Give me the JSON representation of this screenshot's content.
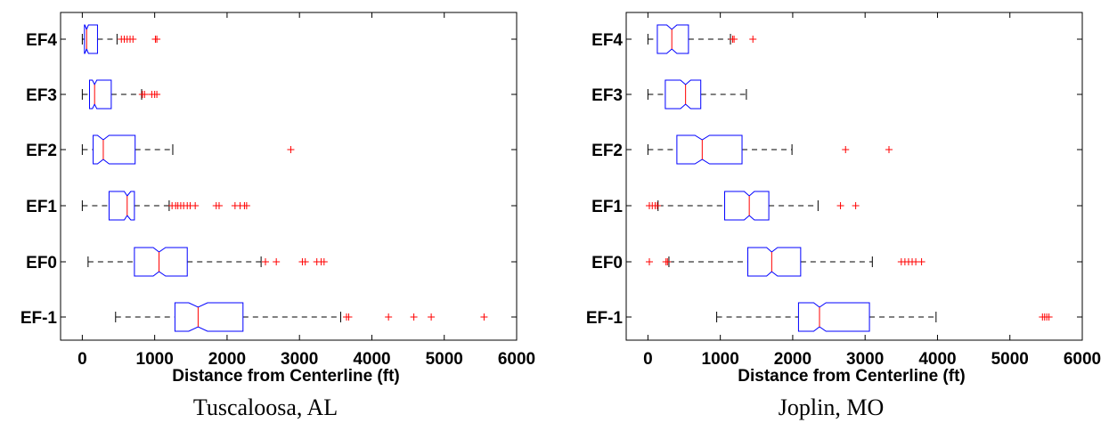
{
  "chart_data": [
    {
      "type": "boxplot",
      "orientation": "horizontal",
      "notched": true,
      "caption": "Tuscaloosa, AL",
      "xlabel": "Distance from Centerline (ft)",
      "xlim": [
        -300,
        6000
      ],
      "xticks": [
        0,
        1000,
        2000,
        3000,
        4000,
        5000,
        6000
      ],
      "categories": [
        "EF4",
        "EF3",
        "EF2",
        "EF1",
        "EF0",
        "EF-1"
      ],
      "boxes": [
        {
          "label": "EF4",
          "whisker_low": 0,
          "q1": 30,
          "median": 60,
          "q3": 210,
          "whisker_high": 480,
          "notch_low": 35,
          "notch_high": 85,
          "outliers": [
            540,
            580,
            620,
            660,
            700,
            1010,
            1030
          ]
        },
        {
          "label": "EF3",
          "whisker_low": 0,
          "q1": 100,
          "median": 170,
          "q3": 400,
          "whisker_high": 820,
          "notch_low": 140,
          "notch_high": 200,
          "outliers": [
            830,
            860,
            960,
            1000,
            1030
          ]
        },
        {
          "label": "EF2",
          "whisker_low": 0,
          "q1": 150,
          "median": 290,
          "q3": 730,
          "whisker_high": 1250,
          "notch_low": 210,
          "notch_high": 370,
          "outliers": [
            2880
          ]
        },
        {
          "label": "EF1",
          "whisker_low": 0,
          "q1": 370,
          "median": 620,
          "q3": 720,
          "whisker_high": 1200,
          "notch_low": 580,
          "notch_high": 670,
          "outliers": [
            1240,
            1290,
            1320,
            1360,
            1400,
            1450,
            1490,
            1560,
            1850,
            1890,
            2110,
            2180,
            2240,
            2270
          ]
        },
        {
          "label": "EF0",
          "whisker_low": 80,
          "q1": 720,
          "median": 1060,
          "q3": 1450,
          "whisker_high": 2470,
          "notch_low": 980,
          "notch_high": 1150,
          "outliers": [
            2530,
            2680,
            3040,
            3080,
            3240,
            3300,
            3340
          ]
        },
        {
          "label": "EF-1",
          "whisker_low": 460,
          "q1": 1280,
          "median": 1600,
          "q3": 2220,
          "whisker_high": 3570,
          "notch_low": 1470,
          "notch_high": 1730,
          "outliers": [
            3650,
            3680,
            4230,
            4580,
            4820,
            5550
          ]
        }
      ]
    },
    {
      "type": "boxplot",
      "orientation": "horizontal",
      "notched": true,
      "caption": "Joplin, MO",
      "xlabel": "Distance from Centerline (ft)",
      "xlim": [
        -300,
        6000
      ],
      "xticks": [
        0,
        1000,
        2000,
        3000,
        4000,
        5000,
        6000
      ],
      "categories": [
        "EF4",
        "EF3",
        "EF2",
        "EF1",
        "EF0",
        "EF-1"
      ],
      "boxes": [
        {
          "label": "EF4",
          "whisker_low": 0,
          "q1": 130,
          "median": 330,
          "q3": 560,
          "whisker_high": 1140,
          "notch_low": 260,
          "notch_high": 400,
          "outliers": [
            1170,
            1190,
            1450
          ]
        },
        {
          "label": "EF3",
          "whisker_low": 0,
          "q1": 240,
          "median": 520,
          "q3": 730,
          "whisker_high": 1360,
          "notch_low": 450,
          "notch_high": 590,
          "outliers": []
        },
        {
          "label": "EF2",
          "whisker_low": 0,
          "q1": 400,
          "median": 750,
          "q3": 1300,
          "whisker_high": 1990,
          "notch_low": 650,
          "notch_high": 850,
          "outliers": [
            2730,
            3330
          ]
        },
        {
          "label": "EF1",
          "whisker_low": 140,
          "q1": 1060,
          "median": 1400,
          "q3": 1670,
          "whisker_high": 2350,
          "notch_low": 1330,
          "notch_high": 1470,
          "outliers": [
            20,
            60,
            100,
            130,
            2660,
            2870
          ]
        },
        {
          "label": "EF0",
          "whisker_low": 290,
          "q1": 1380,
          "median": 1710,
          "q3": 2110,
          "whisker_high": 3100,
          "notch_low": 1640,
          "notch_high": 1790,
          "outliers": [
            20,
            250,
            270,
            3500,
            3550,
            3600,
            3650,
            3700,
            3780
          ]
        },
        {
          "label": "EF-1",
          "whisker_low": 950,
          "q1": 2080,
          "median": 2370,
          "q3": 3060,
          "whisker_high": 3980,
          "notch_low": 2290,
          "notch_high": 2460,
          "outliers": [
            5450,
            5480,
            5510,
            5540
          ]
        }
      ]
    }
  ]
}
